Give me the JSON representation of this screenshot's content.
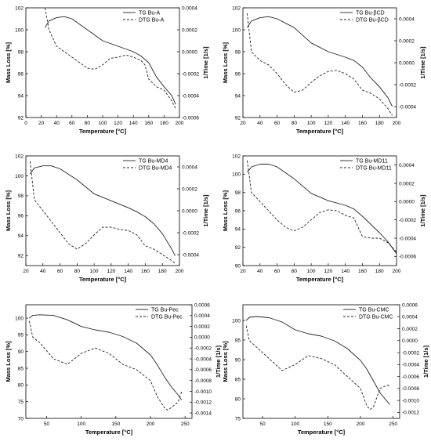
{
  "figure": {
    "chart_data": [
      {
        "type": "line",
        "xlabel": "Temperature [°C]",
        "ylabel": "Mass Loss [%]",
        "y2label": "1/Time [1/s]",
        "xlim": [
          0,
          200
        ],
        "xticks": [
          0,
          20,
          40,
          60,
          80,
          100,
          120,
          140,
          160,
          180,
          200
        ],
        "ylim": [
          92,
          102
        ],
        "yticks": [
          92,
          94,
          96,
          98,
          100,
          102
        ],
        "y2lim": [
          -0.0006,
          0.0004
        ],
        "y2ticks": [
          -0.0006,
          -0.0004,
          -0.0002,
          0.0,
          0.0002,
          0.0004
        ],
        "series": [
          {
            "name": "TG Bu-A",
            "axis": "left",
            "dash": "solid",
            "x": [
              25,
              30,
              40,
              50,
              60,
              80,
              100,
              120,
              140,
              150,
              160,
              170,
              180,
              190,
              195
            ],
            "y": [
              100.2,
              100.8,
              101.1,
              101.2,
              101.0,
              100.0,
              99.0,
              98.5,
              98.0,
              97.6,
              97.0,
              95.7,
              94.8,
              94.0,
              93.2
            ]
          },
          {
            "name": "DTG Bu-A",
            "axis": "right",
            "dash": "dashed",
            "x": [
              25,
              30,
              40,
              50,
              60,
              70,
              80,
              90,
              100,
              110,
              120,
              130,
              140,
              150,
              155,
              160,
              170,
              180,
              190,
              195
            ],
            "y": [
              0.0004,
              0.0002,
              5e-05,
              0.0,
              -5e-05,
              -0.0001,
              -0.00015,
              -0.00016,
              -0.00012,
              -6e-05,
              -5e-05,
              -3e-05,
              -5e-05,
              -8e-05,
              -0.00012,
              -0.00025,
              -0.00032,
              -0.00035,
              -0.00045,
              -0.00052
            ]
          }
        ]
      },
      {
        "type": "line",
        "xlabel": "Temperature [°C]",
        "ylabel": "Mass Loss [%]",
        "y2label": "1/Time [1/s]",
        "xlim": [
          20,
          200
        ],
        "xticks": [
          20,
          40,
          60,
          80,
          100,
          120,
          140,
          160,
          180,
          200
        ],
        "ylim": [
          92,
          102
        ],
        "yticks": [
          92,
          94,
          96,
          98,
          100,
          102
        ],
        "y2lim": [
          -0.0005,
          0.0005
        ],
        "y2ticks": [
          -0.0004,
          -0.0002,
          0.0,
          0.0002,
          0.0004
        ],
        "series": [
          {
            "name": "TG Bu-βCD",
            "axis": "left",
            "dash": "solid",
            "x": [
              25,
              30,
              40,
              50,
              60,
              80,
              100,
              120,
              140,
              150,
              160,
              170,
              180,
              190,
              195
            ],
            "y": [
              100.2,
              100.8,
              101.1,
              101.2,
              101.0,
              100.2,
              98.8,
              98.0,
              97.5,
              97.2,
              96.6,
              95.6,
              94.8,
              93.8,
              93.0
            ]
          },
          {
            "name": "DTG Bu-βCD",
            "axis": "right",
            "dash": "dashed",
            "x": [
              25,
              30,
              40,
              50,
              60,
              70,
              80,
              90,
              100,
              110,
              120,
              130,
              140,
              150,
              160,
              170,
              180,
              190,
              195
            ],
            "y": [
              0.00045,
              0.0001,
              2e-05,
              -2e-05,
              -0.0001,
              -0.0002,
              -0.00027,
              -0.00025,
              -0.00018,
              -0.00012,
              -8e-05,
              -7e-05,
              -0.0001,
              -0.00015,
              -0.00025,
              -0.00028,
              -0.00033,
              -0.00042,
              -0.00048
            ]
          }
        ]
      },
      {
        "type": "line",
        "xlabel": "Temperature [°C]",
        "ylabel": "Mass Loss [%]",
        "y2label": "1/Time [1/s]",
        "xlim": [
          20,
          200
        ],
        "xticks": [
          20,
          40,
          60,
          80,
          100,
          120,
          140,
          160,
          180,
          200
        ],
        "ylim": [
          91,
          102
        ],
        "yticks": [
          92,
          94,
          96,
          98,
          100,
          102
        ],
        "y2lim": [
          -0.0005,
          0.0005
        ],
        "y2ticks": [
          -0.0004,
          -0.0002,
          0.0,
          0.0002,
          0.0004
        ],
        "series": [
          {
            "name": "TG Bu-MD4",
            "axis": "left",
            "dash": "solid",
            "x": [
              25,
              30,
              40,
              50,
              60,
              80,
              100,
              120,
              140,
              150,
              160,
              170,
              180,
              190,
              195
            ],
            "y": [
              100.2,
              100.8,
              101.0,
              101.0,
              100.7,
              99.6,
              98.2,
              97.5,
              96.8,
              96.4,
              95.9,
              95.2,
              94.2,
              92.8,
              92.0
            ]
          },
          {
            "name": "DTG Bu-MD4",
            "axis": "right",
            "dash": "dashed",
            "x": [
              25,
              30,
              40,
              50,
              60,
              70,
              80,
              90,
              100,
              110,
              120,
              130,
              140,
              150,
              160,
              170,
              180,
              190,
              195
            ],
            "y": [
              0.00045,
              0.0001,
              0.0,
              -0.0001,
              -0.0002,
              -0.0003,
              -0.00035,
              -0.0003,
              -0.00022,
              -0.00015,
              -0.00015,
              -0.00017,
              -0.00018,
              -0.00022,
              -0.00032,
              -0.00035,
              -0.0004,
              -0.00045,
              -0.00048
            ]
          }
        ]
      },
      {
        "type": "line",
        "xlabel": "Temperature [°C]",
        "ylabel": "Mass Loss [%]",
        "y2label": "1/Time [1/s]",
        "xlim": [
          20,
          200
        ],
        "xticks": [
          20,
          40,
          60,
          80,
          100,
          120,
          140,
          160,
          180,
          200
        ],
        "ylim": [
          90,
          102
        ],
        "yticks": [
          90,
          92,
          94,
          96,
          98,
          100,
          102
        ],
        "y2lim": [
          -0.0007,
          0.0005
        ],
        "y2ticks": [
          -0.0006,
          -0.0004,
          -0.0002,
          0.0,
          0.0002,
          0.0004
        ],
        "series": [
          {
            "name": "TG Bu-MD11",
            "axis": "left",
            "dash": "solid",
            "x": [
              25,
              30,
              40,
              50,
              60,
              80,
              100,
              120,
              140,
              150,
              160,
              170,
              180,
              190,
              200
            ],
            "y": [
              100.2,
              100.8,
              101.1,
              101.1,
              100.8,
              99.5,
              97.9,
              97.1,
              96.6,
              96.2,
              95.4,
              94.5,
              93.6,
              92.6,
              91.3
            ]
          },
          {
            "name": "DTG Bu-MD11",
            "axis": "right",
            "dash": "dashed",
            "x": [
              25,
              30,
              40,
              50,
              60,
              70,
              80,
              90,
              100,
              110,
              120,
              130,
              140,
              150,
              160,
              170,
              180,
              190,
              200
            ],
            "y": [
              0.00045,
              0.0001,
              0.0,
              -0.0001,
              -0.0002,
              -0.00028,
              -0.00032,
              -0.00028,
              -0.0002,
              -0.00012,
              -9e-05,
              -0.0001,
              -0.00015,
              -0.00018,
              -0.00038,
              -0.0004,
              -0.0004,
              -0.00045,
              -0.00055
            ]
          }
        ]
      },
      {
        "type": "line",
        "xlabel": "Temperature [°C]",
        "ylabel": "Mass Loss [%]",
        "y2label": "1/Time [1/s]",
        "xlim": [
          20,
          260
        ],
        "xticks": [
          50,
          100,
          150,
          200,
          250
        ],
        "ylim": [
          70,
          104
        ],
        "yticks": [
          70,
          75,
          80,
          85,
          90,
          95,
          100
        ],
        "y2lim": [
          -0.0015,
          0.0006
        ],
        "y2ticks": [
          -0.0014,
          -0.0012,
          -0.001,
          -0.0008,
          -0.0006,
          -0.0004,
          -0.0002,
          0.0,
          0.0002,
          0.0004,
          0.0006
        ],
        "series": [
          {
            "name": "TG Bu-Pec",
            "axis": "left",
            "dash": "solid",
            "x": [
              25,
              30,
              40,
              60,
              80,
              100,
              120,
              140,
              160,
              180,
              200,
              210,
              220,
              230,
              240,
              245
            ],
            "y": [
              100.0,
              100.8,
              101.0,
              100.8,
              99.5,
              97.5,
              96.5,
              95.8,
              94.5,
              92.5,
              89.0,
              86.0,
              82.5,
              79.5,
              77.0,
              75.5
            ]
          },
          {
            "name": "DTG Bu-Pec",
            "axis": "right",
            "dash": "dashed",
            "x": [
              25,
              30,
              40,
              60,
              80,
              100,
              120,
              140,
              160,
              180,
              200,
              210,
              220,
              225,
              230,
              240,
              245
            ],
            "y": [
              0.0003,
              0.0,
              -0.0001,
              -0.0004,
              -0.0005,
              -0.0003,
              -0.0002,
              -0.0003,
              -0.0005,
              -0.0006,
              -0.0008,
              -0.0011,
              -0.0013,
              -0.00135,
              -0.0013,
              -0.0012,
              -0.001
            ]
          }
        ]
      },
      {
        "type": "line",
        "xlabel": "Temperature [°C]",
        "ylabel": "Mass Loss [%]",
        "y2label": "1/Time [1/s]",
        "xlim": [
          20,
          260
        ],
        "xticks": [
          50,
          100,
          150,
          200,
          250
        ],
        "ylim": [
          75,
          104
        ],
        "yticks": [
          75,
          80,
          85,
          90,
          95,
          100
        ],
        "y2lim": [
          -0.0013,
          0.0006
        ],
        "y2ticks": [
          -0.0012,
          -0.001,
          -0.0008,
          -0.0006,
          -0.0004,
          -0.0002,
          0.0,
          0.0002,
          0.0004,
          0.0006
        ],
        "series": [
          {
            "name": "TG Bu-CMC",
            "axis": "left",
            "dash": "solid",
            "x": [
              25,
              30,
              40,
              60,
              80,
              100,
              120,
              140,
              160,
              180,
              200,
              210,
              220,
              230,
              240,
              245
            ],
            "y": [
              100.0,
              100.8,
              101.0,
              100.7,
              99.6,
              97.6,
              96.6,
              96.0,
              94.8,
              92.8,
              89.8,
              87.5,
              84.5,
              81.5,
              79.5,
              78.5
            ]
          },
          {
            "name": "DTG Bu-CMC",
            "axis": "right",
            "dash": "dashed",
            "x": [
              25,
              30,
              40,
              60,
              80,
              100,
              120,
              140,
              160,
              180,
              200,
              210,
              215,
              220,
              230,
              240,
              245
            ],
            "y": [
              0.00025,
              0.0,
              -0.0001,
              -0.0003,
              -0.0005,
              -0.0004,
              -0.00025,
              -0.0003,
              -0.0004,
              -0.0006,
              -0.0008,
              -0.0011,
              -0.00115,
              -0.0011,
              -0.0008,
              -0.00075,
              -0.00075
            ]
          }
        ]
      }
    ]
  }
}
